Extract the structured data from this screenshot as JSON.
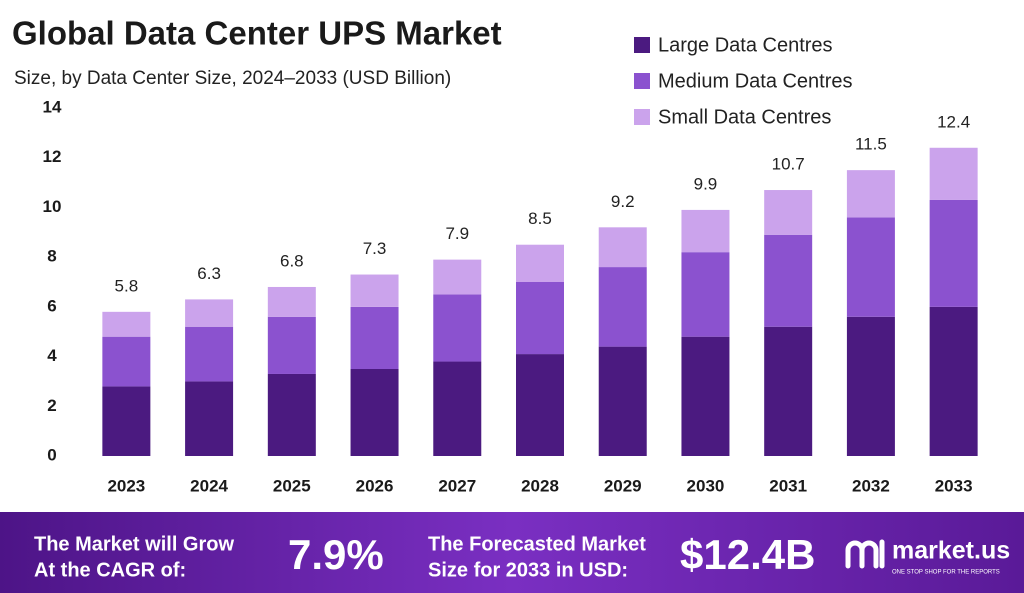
{
  "chart_data": {
    "type": "stacked-bar",
    "title": "Global Data Center UPS Market",
    "subtitle": "Size, by Data Center Size, 2024–2033 (USD Billion)",
    "categories": [
      "2023",
      "2024",
      "2025",
      "2026",
      "2027",
      "2028",
      "2029",
      "2030",
      "2031",
      "2032",
      "2033"
    ],
    "series": [
      {
        "name": "Large Data Centres",
        "color": "#4b1a80",
        "values": [
          2.8,
          3.0,
          3.3,
          3.5,
          3.8,
          4.1,
          4.4,
          4.8,
          5.2,
          5.6,
          6.0
        ]
      },
      {
        "name": "Medium Data Centres",
        "color": "#8b52cf",
        "values": [
          2.0,
          2.2,
          2.3,
          2.5,
          2.7,
          2.9,
          3.2,
          3.4,
          3.7,
          4.0,
          4.3
        ]
      },
      {
        "name": "Small Data Centres",
        "color": "#cba3ec",
        "values": [
          1.0,
          1.1,
          1.2,
          1.3,
          1.4,
          1.5,
          1.6,
          1.7,
          1.8,
          1.9,
          2.1
        ]
      }
    ],
    "totals": [
      5.8,
      6.3,
      6.8,
      7.3,
      7.9,
      8.5,
      9.2,
      9.9,
      10.7,
      11.5,
      12.4
    ],
    "ylim": [
      0,
      14
    ],
    "yticks": [
      0,
      2,
      4,
      6,
      8,
      10,
      12,
      14
    ],
    "grid": false
  },
  "footer": {
    "cagr_text": [
      "The Market will Grow",
      "At the CAGR of:"
    ],
    "cagr": "7.9%",
    "forecast_text": [
      "The Forecasted Market",
      "Size for 2033 in USD:"
    ],
    "forecast": "$12.4B",
    "brand": "market.us",
    "tagline": "ONE STOP SHOP FOR THE REPORTS"
  }
}
